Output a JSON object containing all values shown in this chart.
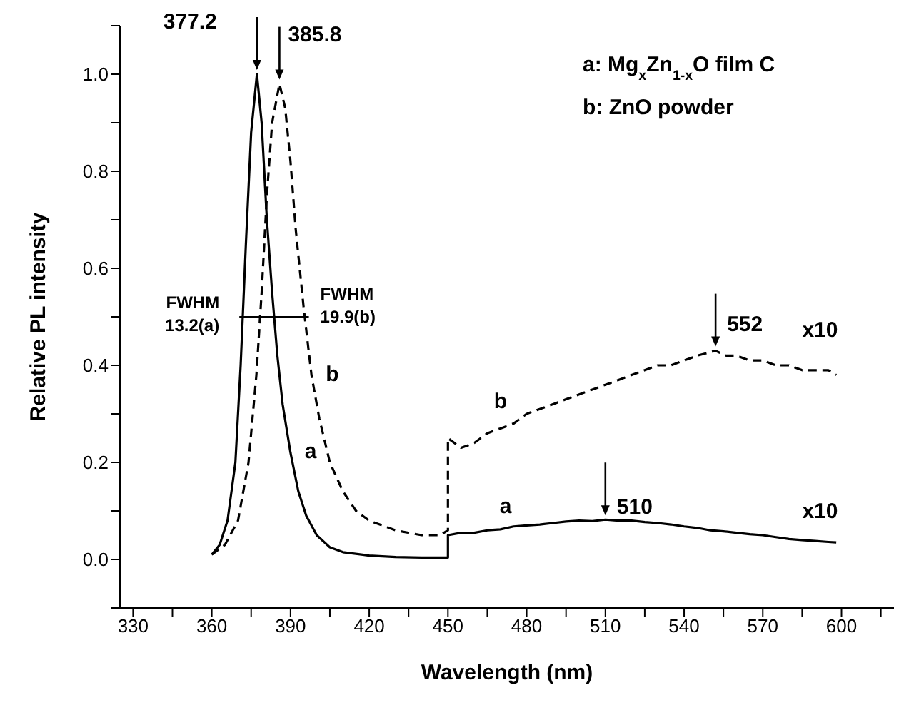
{
  "chart_data": {
    "type": "line",
    "xlabel": "Wavelength (nm)",
    "ylabel": "Relative PL intensity",
    "xlim": [
      325,
      620
    ],
    "ylim": [
      -0.1,
      1.1
    ],
    "xticks": [
      330,
      {
        "value": 345,
        "label": null
      },
      360,
      {
        "value": 375,
        "label": null
      },
      390,
      {
        "value": 405,
        "label": null
      },
      420,
      {
        "value": 435,
        "label": null
      },
      450,
      {
        "value": 465,
        "label": null
      },
      480,
      {
        "value": 495,
        "label": null
      },
      510,
      {
        "value": 525,
        "label": null
      },
      540,
      {
        "value": 555,
        "label": null
      },
      570,
      {
        "value": 585,
        "label": null
      },
      600,
      {
        "value": 615,
        "label": null
      }
    ],
    "yticks": [
      {
        "value": -0.1,
        "label": null
      },
      {
        "value": 0,
        "label": "0.0"
      },
      {
        "value": 0.1,
        "label": null
      },
      {
        "value": 0.2,
        "label": "0.2"
      },
      {
        "value": 0.3,
        "label": null
      },
      {
        "value": 0.4,
        "label": "0.4"
      },
      {
        "value": 0.5,
        "label": null
      },
      {
        "value": 0.6,
        "label": "0.6"
      },
      {
        "value": 0.7,
        "label": null
      },
      {
        "value": 0.8,
        "label": "0.8"
      },
      {
        "value": 0.9,
        "label": null
      },
      {
        "value": 1,
        "label": "1.0"
      },
      {
        "value": 1.1,
        "label": null
      }
    ],
    "series": [
      {
        "name": "a",
        "color": "#000000",
        "line_style": "solid",
        "x": [
          360,
          363,
          366,
          369,
          371,
          373,
          375,
          377.2,
          379,
          381,
          383,
          385,
          387,
          390,
          393,
          396,
          400,
          405,
          410,
          420,
          430,
          440,
          450,
          450,
          455,
          460,
          465,
          470,
          475,
          480,
          485,
          490,
          495,
          500,
          505,
          510,
          515,
          520,
          525,
          530,
          535,
          540,
          545,
          550,
          555,
          560,
          565,
          570,
          575,
          580,
          585,
          590,
          595,
          598
        ],
        "values": [
          0.01,
          0.03,
          0.08,
          0.2,
          0.4,
          0.65,
          0.88,
          1.0,
          0.9,
          0.7,
          0.55,
          0.42,
          0.32,
          0.22,
          0.14,
          0.09,
          0.05,
          0.025,
          0.015,
          0.008,
          0.005,
          0.004,
          0.004,
          0.05,
          0.055,
          0.055,
          0.06,
          0.062,
          0.068,
          0.07,
          0.072,
          0.075,
          0.078,
          0.08,
          0.079,
          0.082,
          0.08,
          0.08,
          0.077,
          0.075,
          0.072,
          0.068,
          0.065,
          0.06,
          0.058,
          0.055,
          0.052,
          0.05,
          0.046,
          0.042,
          0.04,
          0.038,
          0.036,
          0.035
        ]
      },
      {
        "name": "b",
        "color": "#000000",
        "line_style": "dashed",
        "x": [
          360,
          365,
          370,
          374,
          377,
          379,
          381,
          383,
          385.8,
          388,
          390,
          392,
          395,
          398,
          401,
          405,
          410,
          415,
          420,
          430,
          440,
          447,
          450,
          450,
          455,
          460,
          465,
          470,
          475,
          480,
          485,
          490,
          495,
          500,
          505,
          510,
          515,
          520,
          525,
          530,
          535,
          540,
          545,
          552,
          556,
          560,
          565,
          570,
          575,
          580,
          585,
          590,
          595,
          598
        ],
        "values": [
          0.01,
          0.03,
          0.08,
          0.2,
          0.38,
          0.55,
          0.75,
          0.9,
          0.98,
          0.93,
          0.82,
          0.68,
          0.52,
          0.38,
          0.29,
          0.2,
          0.14,
          0.1,
          0.08,
          0.06,
          0.05,
          0.05,
          0.06,
          0.25,
          0.23,
          0.24,
          0.26,
          0.27,
          0.28,
          0.3,
          0.31,
          0.32,
          0.33,
          0.34,
          0.35,
          0.36,
          0.37,
          0.38,
          0.39,
          0.4,
          0.4,
          0.41,
          0.42,
          0.43,
          0.42,
          0.42,
          0.41,
          0.41,
          0.4,
          0.4,
          0.39,
          0.39,
          0.39,
          0.38
        ]
      },
      {
        "type": "line",
        "color": "#000000",
        "line_style": "solid",
        "x": [
          370.5,
          397
        ],
        "values": [
          0.5,
          0.5
        ]
      }
    ],
    "annotations": [
      {
        "text": "377.2",
        "x": 377.2,
        "y": 1.0
      },
      {
        "text": "385.8",
        "x": 385.8,
        "y": 0.98
      },
      {
        "text": "552",
        "x": 552,
        "y": 0.43
      },
      {
        "text": "510",
        "x": 510,
        "y": 0.082
      },
      {
        "text": "FWHM\n13.2(a)",
        "x": 370.5,
        "y": 0.5
      },
      {
        "text": "FWHM\n19.9(b)",
        "x": 397,
        "y": 0.5
      },
      {
        "text": "x10",
        "x": 585,
        "y": 0.4
      },
      {
        "text": "x10",
        "x": 585,
        "y": 0.05
      },
      {
        "text": "a",
        "x": 472,
        "y": 0.06
      },
      {
        "text": "b",
        "x": 470,
        "y": 0.27
      },
      "a: Mg$_{x}$Zn$_{1-x}$O film C",
      "b: ZnO powder"
    ]
  }
}
